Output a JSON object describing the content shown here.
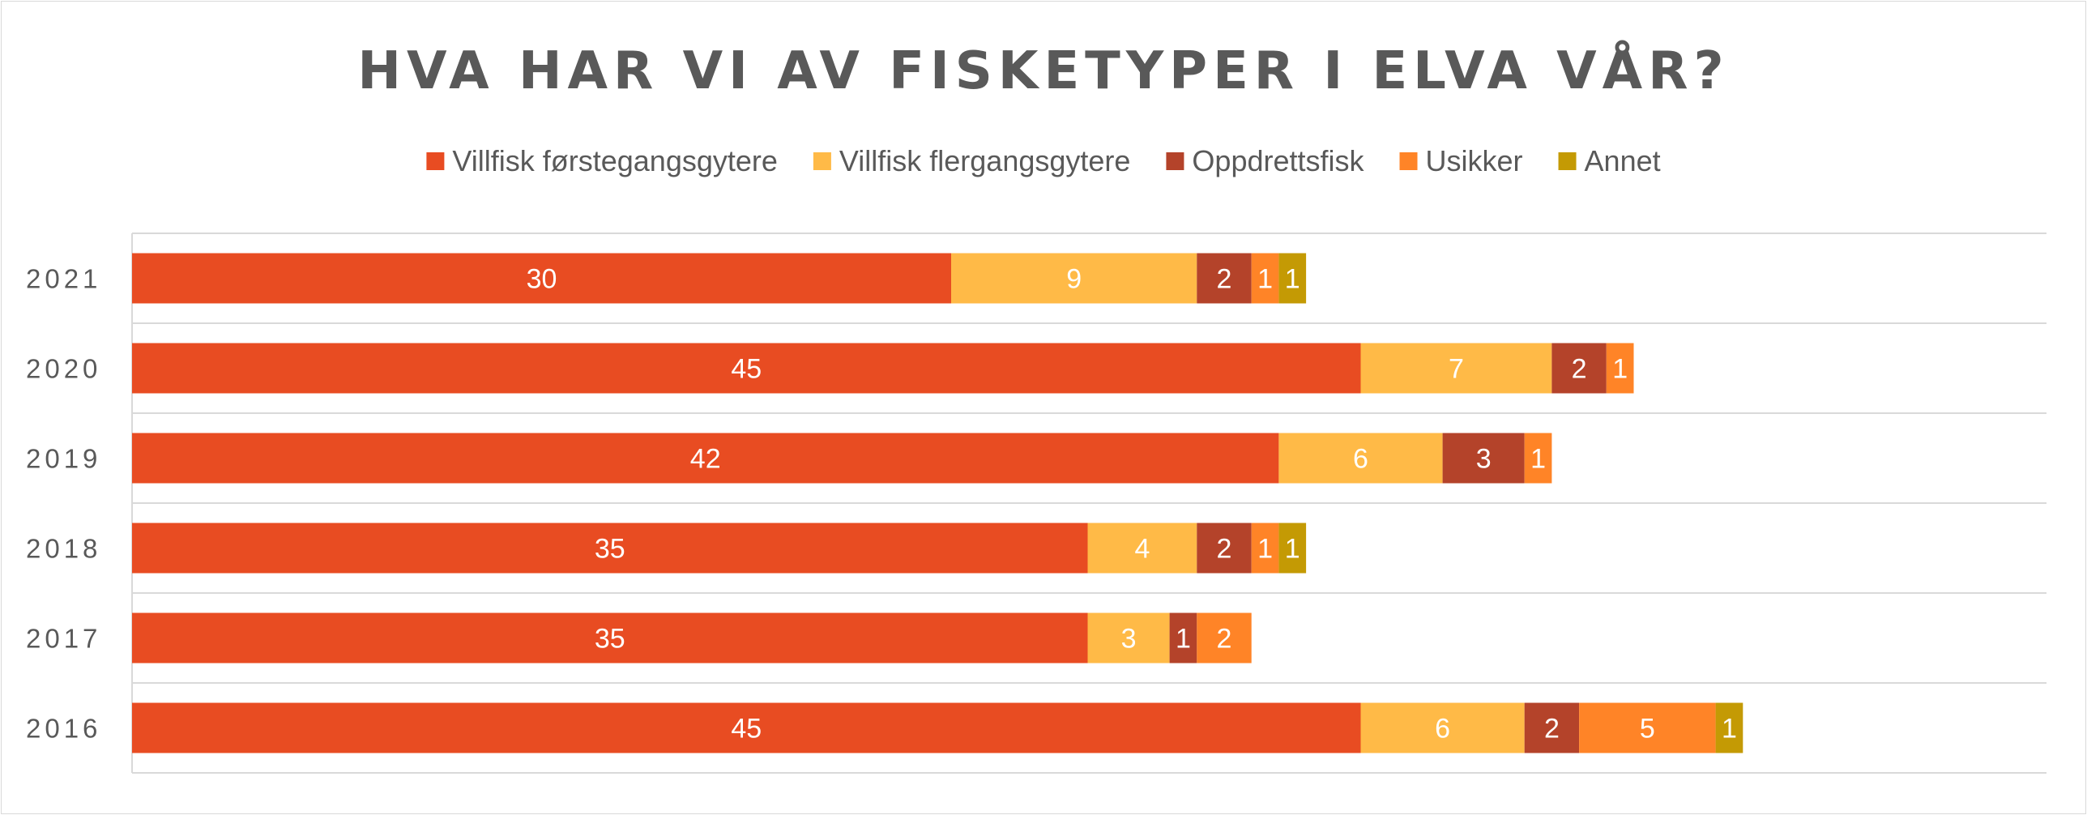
{
  "chart_data": {
    "type": "bar",
    "orientation": "horizontal",
    "stacked": true,
    "title": "HVA HAR VI AV FISKETYPER I ELVA VÅR?",
    "categories": [
      "2021",
      "2020",
      "2019",
      "2018",
      "2017",
      "2016"
    ],
    "series": [
      {
        "name": "Villfisk førstegangsgytere",
        "color": "#E84C22",
        "values": [
          30,
          45,
          42,
          35,
          35,
          45
        ]
      },
      {
        "name": "Villfisk flergangsgytere",
        "color": "#FFBA47",
        "values": [
          9,
          7,
          6,
          4,
          3,
          6
        ]
      },
      {
        "name": "Oppdrettsfisk",
        "color": "#B4432A",
        "values": [
          2,
          2,
          3,
          2,
          1,
          2
        ]
      },
      {
        "name": "Usikker",
        "color": "#FF8427",
        "values": [
          1,
          1,
          1,
          1,
          2,
          5
        ]
      },
      {
        "name": "Annet",
        "color": "#C49A04",
        "values": [
          1,
          0,
          0,
          1,
          0,
          1
        ]
      }
    ],
    "xlim": [
      0,
      70
    ],
    "legend_position": "top",
    "gridlines": true,
    "data_labels": true
  }
}
